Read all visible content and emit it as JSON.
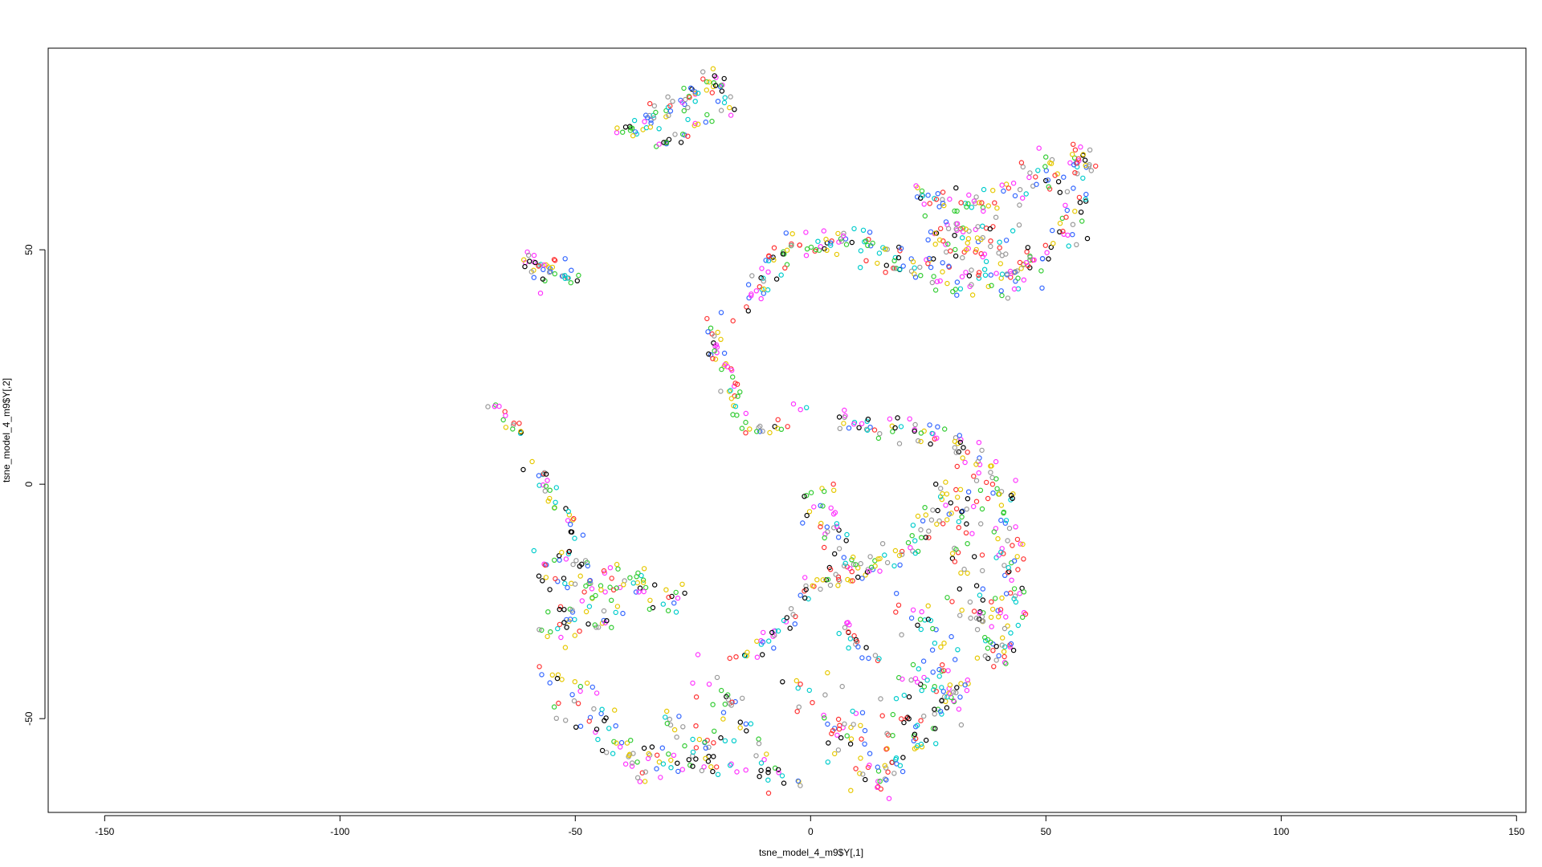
{
  "chart_data": {
    "type": "scatter",
    "title": "",
    "xlabel": "tsne_model_4_m9$Y[,1]",
    "ylabel": "tsne_model_4_m9$Y[,2]",
    "xlim": [
      -162,
      152
    ],
    "ylim": [
      -70,
      93
    ],
    "x_ticks": [
      -150,
      -100,
      -50,
      0,
      50,
      100,
      150
    ],
    "y_ticks": [
      -50,
      0,
      50
    ],
    "x_tick_labels": [
      "-150",
      "-100",
      "-50",
      "0",
      "50",
      "100",
      "150"
    ],
    "y_tick_labels": [
      "-50",
      "0",
      "50"
    ],
    "grid": false,
    "legend": "none",
    "marker": "open-circle",
    "palette": [
      "#000000",
      "#ff3333",
      "#33cc33",
      "#3366ff",
      "#00cccc",
      "#ff33ff",
      "#e6c800",
      "#999999"
    ],
    "segments": [
      {
        "from": [
          -40,
          75
        ],
        "to": [
          -20,
          86
        ],
        "n": 60,
        "spread": 1.2
      },
      {
        "from": [
          -20,
          86
        ],
        "to": [
          -17,
          80
        ],
        "n": 15,
        "spread": 1.0
      },
      {
        "from": [
          -33,
          72
        ],
        "to": [
          -22,
          78
        ],
        "n": 20,
        "spread": 1.0
      },
      {
        "from": [
          -60,
          48
        ],
        "to": [
          -50,
          44
        ],
        "n": 30,
        "spread": 1.0
      },
      {
        "from": [
          -60,
          47
        ],
        "to": [
          -57,
          42
        ],
        "n": 10,
        "spread": 0.8
      },
      {
        "from": [
          -68,
          18
        ],
        "to": [
          -61,
          10
        ],
        "n": 15,
        "spread": 0.8
      },
      {
        "from": [
          -59,
          5
        ],
        "to": [
          -50,
          -11
        ],
        "n": 30,
        "spread": 1.0
      },
      {
        "from": [
          -58,
          -15
        ],
        "to": [
          -42,
          -18
        ],
        "n": 25,
        "spread": 1.0
      },
      {
        "from": [
          -58,
          -21
        ],
        "to": [
          -47,
          -21
        ],
        "n": 15,
        "spread": 0.8
      },
      {
        "from": [
          -56,
          -30
        ],
        "to": [
          -40,
          -20
        ],
        "n": 30,
        "spread": 1.5
      },
      {
        "from": [
          -55,
          -33
        ],
        "to": [
          -40,
          -27
        ],
        "n": 25,
        "spread": 1.5
      },
      {
        "from": [
          -40,
          -20
        ],
        "to": [
          -28,
          -25
        ],
        "n": 30,
        "spread": 2.0
      },
      {
        "from": [
          -55,
          -40
        ],
        "to": [
          -38,
          -60
        ],
        "n": 50,
        "spread": 2.5
      },
      {
        "from": [
          -38,
          -60
        ],
        "to": [
          -20,
          -60
        ],
        "n": 40,
        "spread": 2.0
      },
      {
        "from": [
          -30,
          -48
        ],
        "to": [
          -22,
          -60
        ],
        "n": 20,
        "spread": 1.5
      },
      {
        "from": [
          -22,
          -40
        ],
        "to": [
          -10,
          -62
        ],
        "n": 40,
        "spread": 3.0
      },
      {
        "from": [
          -16,
          -38
        ],
        "to": [
          -8,
          -32
        ],
        "n": 15,
        "spread": 1.2
      },
      {
        "from": [
          -10,
          -62
        ],
        "to": [
          -3,
          -63
        ],
        "n": 12,
        "spread": 1.0
      },
      {
        "from": [
          -8,
          -34
        ],
        "to": [
          0,
          -22
        ],
        "n": 20,
        "spread": 1.2
      },
      {
        "from": [
          0,
          -22
        ],
        "to": [
          10,
          -18
        ],
        "n": 25,
        "spread": 1.5
      },
      {
        "from": [
          10,
          -18
        ],
        "to": [
          22,
          -13
        ],
        "n": 25,
        "spread": 1.5
      },
      {
        "from": [
          22,
          -13
        ],
        "to": [
          28,
          -3
        ],
        "n": 20,
        "spread": 1.5
      },
      {
        "from": [
          -2,
          -3
        ],
        "to": [
          10,
          -20
        ],
        "n": 25,
        "spread": 1.5
      },
      {
        "from": [
          3,
          0
        ],
        "to": [
          6,
          -12
        ],
        "n": 15,
        "spread": 1.2
      },
      {
        "from": [
          0,
          -45
        ],
        "to": [
          15,
          -62
        ],
        "n": 55,
        "spread": 3.5
      },
      {
        "from": [
          5,
          -30
        ],
        "to": [
          13,
          -37
        ],
        "n": 20,
        "spread": 1.5
      },
      {
        "from": [
          12,
          -62
        ],
        "to": [
          20,
          -60
        ],
        "n": 20,
        "spread": 1.5
      },
      {
        "from": [
          18,
          -48
        ],
        "to": [
          25,
          -58
        ],
        "n": 25,
        "spread": 2.0
      },
      {
        "from": [
          20,
          -25
        ],
        "to": [
          28,
          -35
        ],
        "n": 20,
        "spread": 2.0
      },
      {
        "from": [
          20,
          -40
        ],
        "to": [
          32,
          -45
        ],
        "n": 35,
        "spread": 2.5
      },
      {
        "from": [
          25,
          -50
        ],
        "to": [
          33,
          -40
        ],
        "n": 25,
        "spread": 2.0
      },
      {
        "from": [
          6,
          14
        ],
        "to": [
          30,
          10
        ],
        "n": 45,
        "spread": 1.2
      },
      {
        "from": [
          30,
          10
        ],
        "to": [
          40,
          0
        ],
        "n": 30,
        "spread": 1.5
      },
      {
        "from": [
          40,
          0
        ],
        "to": [
          43,
          -20
        ],
        "n": 40,
        "spread": 2.0
      },
      {
        "from": [
          43,
          -20
        ],
        "to": [
          40,
          -38
        ],
        "n": 35,
        "spread": 2.0
      },
      {
        "from": [
          28,
          -2
        ],
        "to": [
          35,
          -10
        ],
        "n": 30,
        "spread": 2.5
      },
      {
        "from": [
          30,
          -15
        ],
        "to": [
          38,
          -30
        ],
        "n": 35,
        "spread": 3.0
      },
      {
        "from": [
          35,
          -25
        ],
        "to": [
          38,
          -38
        ],
        "n": 20,
        "spread": 1.5
      },
      {
        "from": [
          -15,
          12
        ],
        "to": [
          -5,
          12
        ],
        "n": 15,
        "spread": 0.8
      },
      {
        "from": [
          -20,
          30
        ],
        "to": [
          -15,
          15
        ],
        "n": 30,
        "spread": 1.2
      },
      {
        "from": [
          -21,
          35
        ],
        "to": [
          -20,
          28
        ],
        "n": 12,
        "spread": 0.8
      },
      {
        "from": [
          -14,
          38
        ],
        "to": [
          -5,
          50
        ],
        "n": 35,
        "spread": 1.5
      },
      {
        "from": [
          -5,
          50
        ],
        "to": [
          8,
          52
        ],
        "n": 30,
        "spread": 1.2
      },
      {
        "from": [
          8,
          52
        ],
        "to": [
          22,
          46
        ],
        "n": 40,
        "spread": 2.0
      },
      {
        "from": [
          22,
          46
        ],
        "to": [
          42,
          42
        ],
        "n": 50,
        "spread": 2.5
      },
      {
        "from": [
          42,
          42
        ],
        "to": [
          55,
          56
        ],
        "n": 40,
        "spread": 2.5
      },
      {
        "from": [
          55,
          56
        ],
        "to": [
          58,
          70
        ],
        "n": 30,
        "spread": 2.0
      },
      {
        "from": [
          22,
          62
        ],
        "to": [
          35,
          60
        ],
        "n": 30,
        "spread": 1.5
      },
      {
        "from": [
          35,
          60
        ],
        "to": [
          50,
          66
        ],
        "n": 30,
        "spread": 1.8
      },
      {
        "from": [
          50,
          66
        ],
        "to": [
          58,
          70
        ],
        "n": 20,
        "spread": 1.5
      },
      {
        "from": [
          25,
          52
        ],
        "to": [
          45,
          50
        ],
        "n": 40,
        "spread": 3.0
      },
      {
        "from": [
          30,
          58
        ],
        "to": [
          40,
          48
        ],
        "n": 30,
        "spread": 3.0
      },
      {
        "from": [
          -4,
          17
        ],
        "to": [
          -1,
          16
        ],
        "n": 3,
        "spread": 0.5
      },
      {
        "from": [
          59,
          69
        ],
        "to": [
          60,
          68
        ],
        "n": 2,
        "spread": 0.5
      }
    ]
  }
}
